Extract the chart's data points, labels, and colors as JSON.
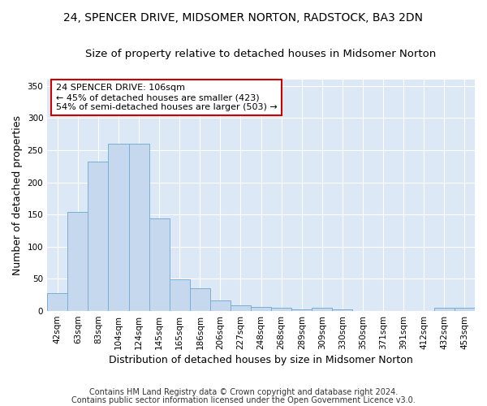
{
  "title": "24, SPENCER DRIVE, MIDSOMER NORTON, RADSTOCK, BA3 2DN",
  "subtitle": "Size of property relative to detached houses in Midsomer Norton",
  "xlabel": "Distribution of detached houses by size in Midsomer Norton",
  "ylabel": "Number of detached properties",
  "footnote1": "Contains HM Land Registry data © Crown copyright and database right 2024.",
  "footnote2": "Contains public sector information licensed under the Open Government Licence v3.0.",
  "categories": [
    "42sqm",
    "63sqm",
    "83sqm",
    "104sqm",
    "124sqm",
    "145sqm",
    "165sqm",
    "186sqm",
    "206sqm",
    "227sqm",
    "248sqm",
    "268sqm",
    "289sqm",
    "309sqm",
    "330sqm",
    "350sqm",
    "371sqm",
    "391sqm",
    "412sqm",
    "432sqm",
    "453sqm"
  ],
  "values": [
    28,
    154,
    232,
    260,
    260,
    144,
    49,
    35,
    16,
    9,
    6,
    5,
    2,
    5,
    3,
    0,
    0,
    0,
    0,
    5,
    5
  ],
  "bar_color": "#c5d8ed",
  "bar_edge_color": "#7aaed6",
  "annotation_text": "24 SPENCER DRIVE: 106sqm\n← 45% of detached houses are smaller (423)\n54% of semi-detached houses are larger (503) →",
  "annotation_box_color": "#ffffff",
  "annotation_box_edge_color": "#cc0000",
  "ylim": [
    0,
    360
  ],
  "yticks": [
    0,
    50,
    100,
    150,
    200,
    250,
    300,
    350
  ],
  "bg_color": "#dce8f5",
  "grid_color": "#ffffff",
  "fig_bg_color": "#ffffff",
  "title_fontsize": 10,
  "subtitle_fontsize": 9.5,
  "axis_label_fontsize": 9,
  "tick_fontsize": 7.5,
  "annotation_fontsize": 8,
  "footnote_fontsize": 7
}
